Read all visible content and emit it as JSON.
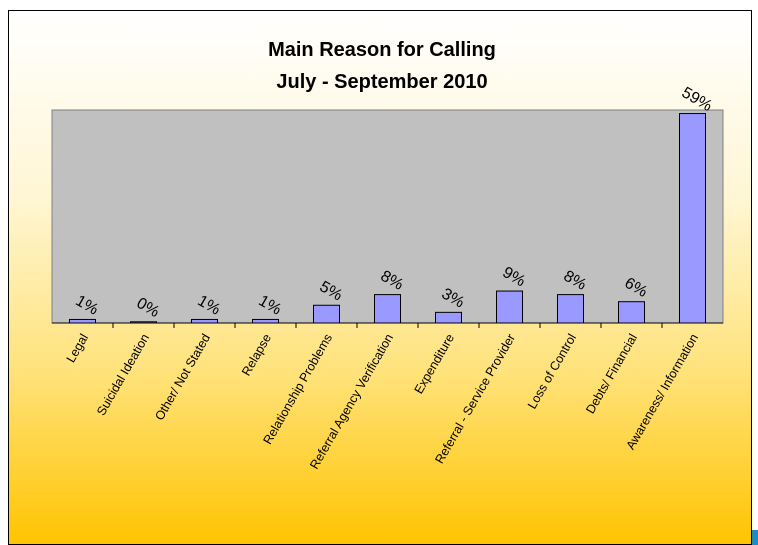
{
  "chart_data": {
    "type": "bar",
    "title": [
      "Main Reason for Calling",
      "July - September 2010"
    ],
    "xlabel": "",
    "ylabel": "",
    "ylim": [
      0,
      60
    ],
    "grid": false,
    "legend": "none",
    "categories": [
      "Legal",
      "Suicidal Ideation",
      "Other/ Not Stated",
      "Relapse",
      "Relationship Problems",
      "Referral Agency Verification",
      "Expenditure",
      "Referral - Service Provider",
      "Loss of Control",
      "Debts/ Financial",
      "Awareness/ Information"
    ],
    "values": [
      1,
      0,
      1,
      1,
      5,
      8,
      3,
      9,
      8,
      6,
      59
    ],
    "data_labels": [
      "1%",
      "0%",
      "1%",
      "1%",
      "5%",
      "8%",
      "3%",
      "9%",
      "8%",
      "6%",
      "59%"
    ],
    "colors": {
      "bar_fill": "#9999ff",
      "bar_stroke": "#000000",
      "plot_background": "#c0c0c0"
    }
  }
}
